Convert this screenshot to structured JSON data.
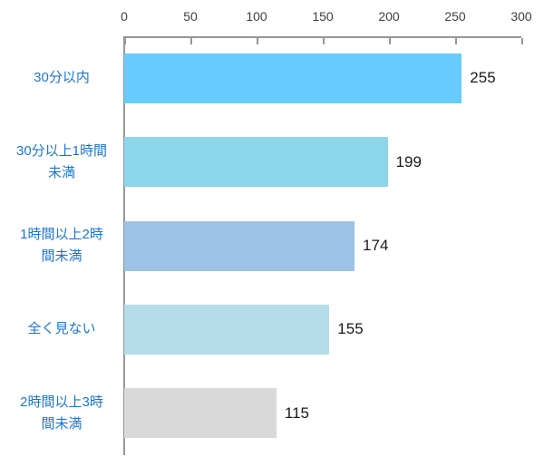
{
  "chart_data": {
    "type": "bar",
    "orientation": "horizontal",
    "title": "",
    "categories": [
      "30分以内",
      "30分以上1時間未満",
      "1時間以上2時間未満",
      "全く見ない",
      "2時間以上3時間未満"
    ],
    "category_label_lines": [
      [
        "30分以内"
      ],
      [
        "30分以上1時間",
        "未満"
      ],
      [
        "1時間以上2時",
        "間未満"
      ],
      [
        "全く見ない"
      ],
      [
        "2時間以上3時",
        "間未満"
      ]
    ],
    "values": [
      255,
      199,
      174,
      155,
      115
    ],
    "value_labels": [
      "255",
      "199",
      "174",
      "155",
      "115"
    ],
    "bar_colors": [
      "#66CCFF",
      "#8BD6E8",
      "#9CC3E5",
      "#B6DCE9",
      "#D9D9D9"
    ],
    "x_ticks": [
      "0",
      "50",
      "100",
      "150",
      "200",
      "250",
      "300"
    ],
    "x_tick_values": [
      0,
      50,
      100,
      150,
      200,
      250,
      300
    ],
    "xlim": [
      0,
      300
    ],
    "axis_position": "top",
    "grid": false,
    "legend": false,
    "data_labels": true,
    "colors": {
      "category_label": "#1F74C8",
      "value_label": "#1A1A1A",
      "tick_label": "#404040",
      "axis_line": "#969696"
    }
  }
}
